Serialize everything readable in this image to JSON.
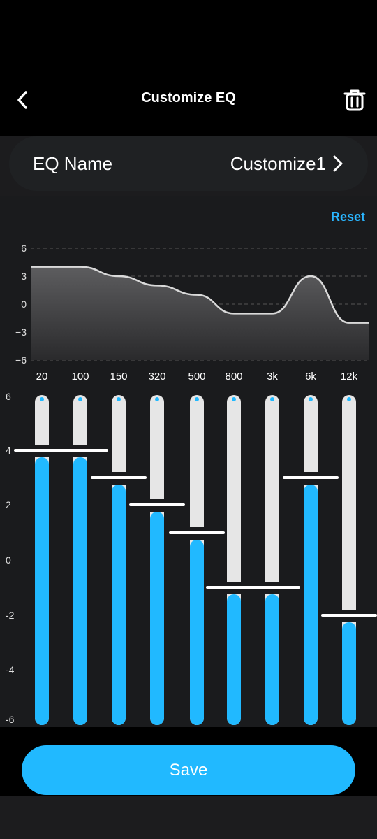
{
  "header": {
    "title": "Customize EQ",
    "back_icon": "chevron-left-icon",
    "delete_icon": "trash-icon"
  },
  "eq_name": {
    "label": "EQ Name",
    "value": "Customize1",
    "chevron_icon": "chevron-right-icon"
  },
  "reset_label": "Reset",
  "graph": {
    "y_ticks": [
      "6",
      "3",
      "0",
      "−3",
      "−6"
    ],
    "ylim": [
      -6,
      6
    ]
  },
  "bands": [
    {
      "freq": "20",
      "gain": 4
    },
    {
      "freq": "100",
      "gain": 4
    },
    {
      "freq": "150",
      "gain": 3
    },
    {
      "freq": "320",
      "gain": 2
    },
    {
      "freq": "500",
      "gain": 1
    },
    {
      "freq": "800",
      "gain": -1
    },
    {
      "freq": "3k",
      "gain": -1
    },
    {
      "freq": "6k",
      "gain": 3
    },
    {
      "freq": "12k",
      "gain": -2
    }
  ],
  "slider_scale": [
    "6",
    "4",
    "2",
    "0",
    "-2",
    "-4",
    "-6"
  ],
  "save_label": "Save",
  "colors": {
    "accent": "#21b9ff",
    "background": "#1c1c1e",
    "track": "#e6e6e6"
  }
}
